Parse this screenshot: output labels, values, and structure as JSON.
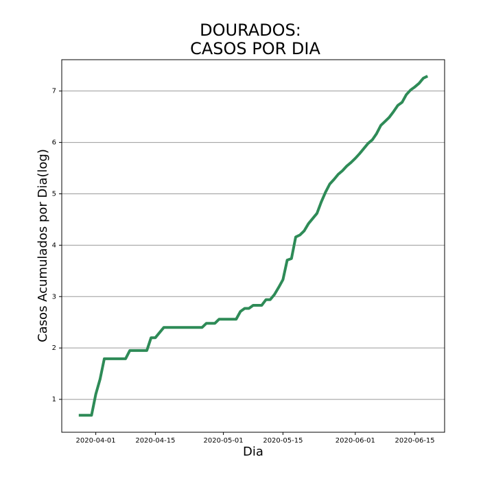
{
  "chart_data": {
    "type": "line",
    "title": "DOURADOS:",
    "subtitle": "CASOS POR DIA",
    "x_label": "Dia",
    "y_label": "Casos Acumulados por Dia(log)",
    "x": [
      "2020-03-28",
      "2020-03-29",
      "2020-03-30",
      "2020-03-31",
      "2020-04-01",
      "2020-04-02",
      "2020-04-03",
      "2020-04-04",
      "2020-04-05",
      "2020-04-06",
      "2020-04-07",
      "2020-04-08",
      "2020-04-09",
      "2020-04-10",
      "2020-04-11",
      "2020-04-12",
      "2020-04-13",
      "2020-04-14",
      "2020-04-15",
      "2020-04-16",
      "2020-04-17",
      "2020-04-18",
      "2020-04-19",
      "2020-04-20",
      "2020-04-21",
      "2020-04-22",
      "2020-04-23",
      "2020-04-24",
      "2020-04-25",
      "2020-04-26",
      "2020-04-27",
      "2020-04-28",
      "2020-04-29",
      "2020-04-30",
      "2020-05-01",
      "2020-05-02",
      "2020-05-03",
      "2020-05-04",
      "2020-05-05",
      "2020-05-06",
      "2020-05-07",
      "2020-05-08",
      "2020-05-09",
      "2020-05-10",
      "2020-05-11",
      "2020-05-12",
      "2020-05-13",
      "2020-05-14",
      "2020-05-15",
      "2020-05-16",
      "2020-05-17",
      "2020-05-18",
      "2020-05-19",
      "2020-05-20",
      "2020-05-21",
      "2020-05-22",
      "2020-05-23",
      "2020-05-24",
      "2020-05-25",
      "2020-05-26",
      "2020-05-27",
      "2020-05-28",
      "2020-05-29",
      "2020-05-30",
      "2020-05-31",
      "2020-06-01",
      "2020-06-02",
      "2020-06-03",
      "2020-06-04",
      "2020-06-05",
      "2020-06-06",
      "2020-06-07",
      "2020-06-08",
      "2020-06-09",
      "2020-06-10",
      "2020-06-11",
      "2020-06-12",
      "2020-06-13",
      "2020-06-14",
      "2020-06-15",
      "2020-06-16",
      "2020-06-17",
      "2020-06-18"
    ],
    "series": [
      {
        "name": "Dourados",
        "color": "#2e8b57",
        "values": [
          0.69,
          0.69,
          0.69,
          0.69,
          1.1,
          1.39,
          1.79,
          1.79,
          1.79,
          1.79,
          1.79,
          1.79,
          1.95,
          1.95,
          1.95,
          1.95,
          1.95,
          2.2,
          2.2,
          2.3,
          2.4,
          2.4,
          2.4,
          2.4,
          2.4,
          2.4,
          2.4,
          2.4,
          2.4,
          2.4,
          2.48,
          2.48,
          2.48,
          2.56,
          2.56,
          2.56,
          2.56,
          2.56,
          2.71,
          2.77,
          2.77,
          2.83,
          2.83,
          2.83,
          2.94,
          2.94,
          3.04,
          3.18,
          3.33,
          3.71,
          3.74,
          4.16,
          4.2,
          4.28,
          4.42,
          4.52,
          4.62,
          4.84,
          5.03,
          5.19,
          5.28,
          5.38,
          5.45,
          5.54,
          5.61,
          5.69,
          5.78,
          5.88,
          5.98,
          6.05,
          6.17,
          6.33,
          6.41,
          6.49,
          6.6,
          6.72,
          6.78,
          6.93,
          7.02,
          7.08,
          7.15,
          7.25,
          7.29
        ]
      }
    ],
    "xlim": [
      "2020-03-24",
      "2020-06-22"
    ],
    "xticks": [
      "2020-04-01",
      "2020-04-15",
      "2020-05-01",
      "2020-05-15",
      "2020-06-01",
      "2020-06-15"
    ],
    "ylim": [
      0.36,
      7.61
    ],
    "yticks": [
      1,
      2,
      3,
      4,
      5,
      6,
      7
    ],
    "grid": true
  }
}
